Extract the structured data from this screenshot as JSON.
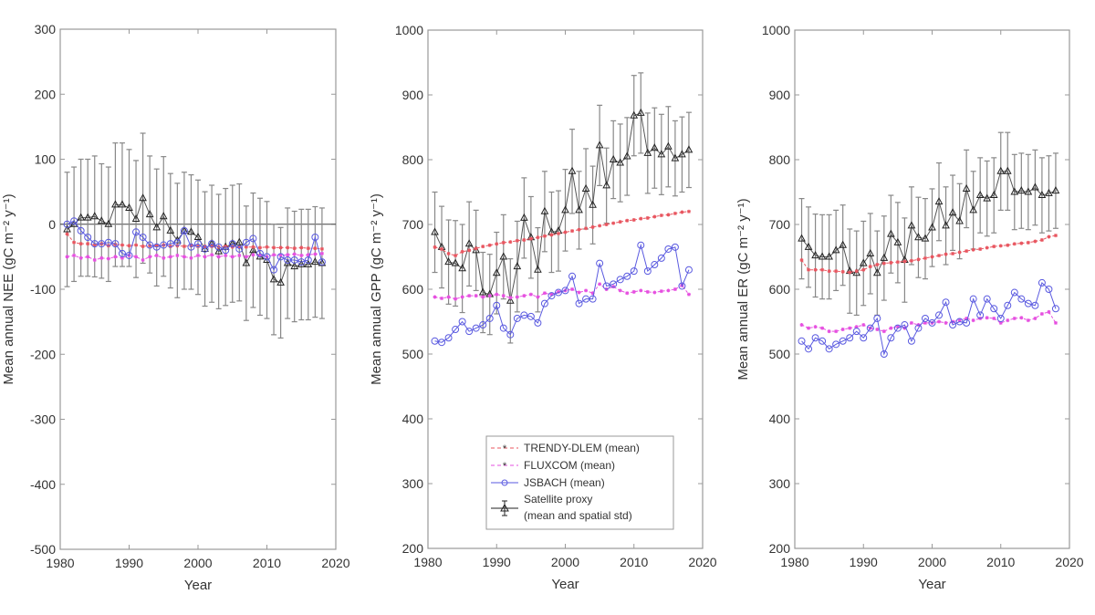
{
  "figure": {
    "legend": {
      "placement": "lower-right of middle panel",
      "entries": [
        {
          "key": "trendy",
          "label": "TRENDY-DLEM (mean)"
        },
        {
          "key": "fluxcom",
          "label": "FLUXCOM (mean)"
        },
        {
          "key": "jsbach",
          "label": "JSBACH (mean)"
        },
        {
          "key": "satellite",
          "label_line1": "Satellite proxy",
          "label_line2": "(mean and spatial std)"
        }
      ]
    },
    "colors": {
      "trendy": "#e8555f",
      "fluxcom": "#e64fe0",
      "jsbach": "#5a5ae0",
      "satellite": "#222222",
      "errorbar": "#888888",
      "axis": "#999999",
      "zero_line": "#444444"
    }
  },
  "chart_data": [
    {
      "id": "nee",
      "type": "line",
      "title": "",
      "xlabel": "Year",
      "ylabel": "Mean annual NEE (gC m⁻² y⁻¹)",
      "xlim": [
        1980,
        2020
      ],
      "ylim": [
        -500,
        300
      ],
      "xticks": [
        1980,
        1990,
        2000,
        2010,
        2020
      ],
      "yticks": [
        -500,
        -400,
        -300,
        -200,
        -100,
        0,
        100,
        200,
        300
      ],
      "zero_line": true,
      "grid": false,
      "x": [
        1981,
        1982,
        1983,
        1984,
        1985,
        1986,
        1987,
        1988,
        1989,
        1990,
        1991,
        1992,
        1993,
        1994,
        1995,
        1996,
        1997,
        1998,
        1999,
        2000,
        2001,
        2002,
        2003,
        2004,
        2005,
        2006,
        2007,
        2008,
        2009,
        2010,
        2011,
        2012,
        2013,
        2014,
        2015,
        2016,
        2017,
        2018
      ],
      "series": [
        {
          "name": "TRENDY-DLEM (mean)",
          "key": "trendy",
          "values": [
            -15,
            -28,
            -30,
            -30,
            -32,
            -30,
            -33,
            -31,
            -32,
            -33,
            -32,
            -34,
            -33,
            -33,
            -32,
            -34,
            -33,
            -34,
            -33,
            -34,
            -34,
            -34,
            -35,
            -34,
            -35,
            -35,
            -35,
            -35,
            -36,
            -35,
            -36,
            -36,
            -36,
            -37,
            -36,
            -37,
            -37,
            -38
          ]
        },
        {
          "name": "FLUXCOM (mean)",
          "key": "fluxcom",
          "values": [
            -50,
            -48,
            -52,
            -50,
            -55,
            -52,
            -53,
            -50,
            -52,
            -48,
            -50,
            -55,
            -50,
            -48,
            -52,
            -50,
            -48,
            -50,
            -52,
            -48,
            -50,
            -47,
            -50,
            -48,
            -50,
            -48,
            -50,
            -47,
            -48,
            -50,
            -47,
            -48,
            -47,
            -46,
            -48,
            -47,
            -46,
            -45
          ]
        },
        {
          "name": "JSBACH (mean)",
          "key": "jsbach",
          "values": [
            0,
            5,
            -10,
            -20,
            -30,
            -30,
            -28,
            -30,
            -45,
            -48,
            -12,
            -20,
            -32,
            -35,
            -32,
            -30,
            -28,
            -10,
            -35,
            -30,
            -38,
            -30,
            -35,
            -40,
            -30,
            -38,
            -28,
            -22,
            -45,
            -50,
            -70,
            -50,
            -55,
            -55,
            -58,
            -55,
            -20,
            -58
          ]
        },
        {
          "name": "Satellite proxy (mean and spatial std)",
          "key": "satellite",
          "values": [
            -8,
            0,
            10,
            10,
            12,
            5,
            0,
            30,
            30,
            25,
            8,
            40,
            15,
            -5,
            12,
            -10,
            -25,
            -10,
            -12,
            -20,
            -38,
            -30,
            -42,
            -35,
            -30,
            -28,
            -60,
            -40,
            -50,
            -55,
            -85,
            -90,
            -60,
            -65,
            -62,
            -62,
            -58,
            -60
          ],
          "std": [
            88,
            88,
            90,
            90,
            93,
            88,
            88,
            95,
            95,
            90,
            90,
            100,
            90,
            90,
            92,
            88,
            88,
            90,
            88,
            88,
            88,
            90,
            88,
            90,
            90,
            90,
            88,
            88,
            90,
            90,
            85,
            85,
            85,
            85,
            85,
            85,
            85,
            85
          ]
        }
      ]
    },
    {
      "id": "gpp",
      "type": "line",
      "title": "",
      "xlabel": "Year",
      "ylabel": "Mean annual GPP (gC m⁻² y⁻¹)",
      "xlim": [
        1980,
        2020
      ],
      "ylim": [
        200,
        1000
      ],
      "xticks": [
        1980,
        1990,
        2000,
        2010,
        2020
      ],
      "yticks": [
        200,
        300,
        400,
        500,
        600,
        700,
        800,
        900,
        1000
      ],
      "grid": false,
      "x": [
        1981,
        1982,
        1983,
        1984,
        1985,
        1986,
        1987,
        1988,
        1989,
        1990,
        1991,
        1992,
        1993,
        1994,
        1995,
        1996,
        1997,
        1998,
        1999,
        2000,
        2001,
        2002,
        2003,
        2004,
        2005,
        2006,
        2007,
        2008,
        2009,
        2010,
        2011,
        2012,
        2013,
        2014,
        2015,
        2016,
        2017,
        2018
      ],
      "series": [
        {
          "name": "TRENDY-DLEM (mean)",
          "key": "trendy",
          "values": [
            665,
            662,
            655,
            652,
            658,
            660,
            663,
            666,
            668,
            670,
            672,
            673,
            675,
            676,
            678,
            680,
            682,
            684,
            686,
            688,
            690,
            692,
            694,
            696,
            698,
            700,
            702,
            704,
            706,
            707,
            709,
            710,
            712,
            714,
            715,
            717,
            719,
            720
          ]
        },
        {
          "name": "FLUXCOM (mean)",
          "key": "fluxcom",
          "values": [
            588,
            586,
            588,
            585,
            588,
            590,
            590,
            588,
            590,
            592,
            590,
            587,
            588,
            590,
            592,
            588,
            594,
            592,
            596,
            598,
            600,
            595,
            598,
            594,
            608,
            600,
            604,
            598,
            594,
            596,
            598,
            596,
            595,
            597,
            598,
            600,
            606,
            592
          ]
        },
        {
          "name": "JSBACH (mean)",
          "key": "jsbach",
          "values": [
            520,
            518,
            525,
            538,
            550,
            535,
            540,
            545,
            555,
            575,
            540,
            530,
            555,
            560,
            558,
            548,
            578,
            590,
            595,
            598,
            620,
            578,
            585,
            585,
            640,
            605,
            608,
            615,
            620,
            628,
            668,
            628,
            638,
            648,
            662,
            665,
            605,
            630
          ]
        },
        {
          "name": "Satellite proxy (mean and spatial std)",
          "key": "satellite",
          "values": [
            688,
            665,
            642,
            640,
            632,
            670,
            660,
            595,
            592,
            625,
            650,
            582,
            635,
            710,
            680,
            630,
            720,
            688,
            690,
            722,
            782,
            722,
            755,
            730,
            822,
            760,
            800,
            795,
            805,
            868,
            872,
            810,
            818,
            808,
            820,
            802,
            808,
            815
          ],
          "std": [
            62,
            63,
            65,
            66,
            68,
            65,
            62,
            62,
            62,
            63,
            65,
            65,
            70,
            62,
            63,
            65,
            62,
            62,
            62,
            63,
            65,
            60,
            62,
            60,
            62,
            58,
            60,
            60,
            60,
            62,
            62,
            62,
            62,
            62,
            62,
            58,
            58,
            58
          ]
        }
      ]
    },
    {
      "id": "er",
      "type": "line",
      "title": "",
      "xlabel": "Year",
      "ylabel": "Mean annual ER (gC m⁻² y⁻¹)",
      "xlim": [
        1980,
        2020
      ],
      "ylim": [
        200,
        1000
      ],
      "xticks": [
        1980,
        1990,
        2000,
        2010,
        2020
      ],
      "yticks": [
        200,
        300,
        400,
        500,
        600,
        700,
        800,
        900,
        1000
      ],
      "grid": false,
      "x": [
        1981,
        1982,
        1983,
        1984,
        1985,
        1986,
        1987,
        1988,
        1989,
        1990,
        1991,
        1992,
        1993,
        1994,
        1995,
        1996,
        1997,
        1998,
        1999,
        2000,
        2001,
        2002,
        2003,
        2004,
        2005,
        2006,
        2007,
        2008,
        2009,
        2010,
        2011,
        2012,
        2013,
        2014,
        2015,
        2016,
        2017,
        2018
      ],
      "series": [
        {
          "name": "TRENDY-DLEM (mean)",
          "key": "trendy",
          "values": [
            645,
            630,
            630,
            630,
            628,
            628,
            627,
            626,
            628,
            630,
            635,
            638,
            640,
            641,
            642,
            643,
            644,
            646,
            648,
            650,
            652,
            654,
            655,
            657,
            659,
            661,
            662,
            664,
            666,
            667,
            668,
            670,
            671,
            672,
            674,
            676,
            681,
            683
          ]
        },
        {
          "name": "FLUXCOM (mean)",
          "key": "fluxcom",
          "values": [
            545,
            540,
            542,
            540,
            535,
            535,
            538,
            540,
            542,
            545,
            540,
            538,
            535,
            540,
            542,
            540,
            548,
            545,
            548,
            548,
            550,
            548,
            550,
            552,
            555,
            552,
            555,
            556,
            555,
            548,
            552,
            555,
            556,
            552,
            555,
            562,
            565,
            548
          ]
        },
        {
          "name": "JSBACH (mean)",
          "key": "jsbach",
          "values": [
            520,
            508,
            525,
            520,
            508,
            515,
            520,
            525,
            535,
            525,
            540,
            555,
            500,
            525,
            540,
            545,
            520,
            540,
            555,
            548,
            560,
            580,
            545,
            550,
            548,
            585,
            560,
            585,
            570,
            555,
            575,
            595,
            585,
            578,
            575,
            610,
            600,
            570
          ]
        },
        {
          "name": "Satellite proxy (mean and spatial std)",
          "key": "satellite",
          "values": [
            678,
            665,
            652,
            650,
            650,
            660,
            668,
            628,
            625,
            640,
            655,
            625,
            648,
            685,
            672,
            645,
            698,
            680,
            678,
            695,
            735,
            698,
            718,
            705,
            755,
            722,
            745,
            740,
            745,
            782,
            782,
            750,
            752,
            750,
            757,
            745,
            748,
            752
          ],
          "std": [
            62,
            62,
            64,
            65,
            65,
            62,
            62,
            65,
            65,
            65,
            62,
            65,
            65,
            60,
            62,
            65,
            60,
            62,
            62,
            60,
            60,
            60,
            58,
            58,
            60,
            60,
            58,
            58,
            58,
            60,
            60,
            58,
            58,
            58,
            58,
            58,
            58,
            58
          ]
        }
      ]
    }
  ]
}
